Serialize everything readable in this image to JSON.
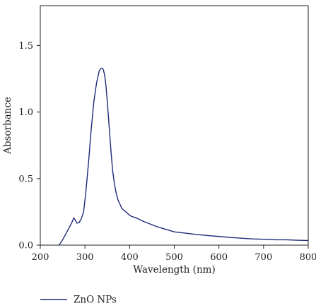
{
  "chart_data": {
    "type": "line",
    "title": "",
    "xlabel": "Wavelength (nm)",
    "ylabel": "Absorbance",
    "xlim": [
      200,
      800
    ],
    "ylim": [
      0.0,
      1.8
    ],
    "x_ticks": [
      200,
      300,
      400,
      500,
      600,
      700,
      800
    ],
    "x_tick_labels": [
      "200",
      "300",
      "400",
      "500",
      "600",
      "700",
      "800"
    ],
    "y_ticks": [
      0.0,
      0.5,
      1.0,
      1.5
    ],
    "y_tick_labels": [
      "0.0",
      "0.5",
      "1.0",
      "1.5"
    ],
    "grid": false,
    "legend_position": "bottom-left",
    "series": [
      {
        "name": "ZnO NPs",
        "color": "#1f2a7a",
        "x": [
          242,
          250,
          258,
          266,
          272,
          275,
          278,
          282,
          287,
          292,
          297,
          302,
          308,
          314,
          320,
          326,
          332,
          336,
          339,
          341,
          344,
          347,
          350,
          354,
          358,
          362,
          366,
          370,
          374,
          378,
          382,
          386,
          390,
          395,
          400,
          405,
          410,
          418,
          430,
          445,
          460,
          480,
          500,
          525,
          550,
          575,
          600,
          625,
          650,
          675,
          700,
          725,
          750,
          775,
          800
        ],
        "y": [
          0.0,
          0.04,
          0.09,
          0.14,
          0.18,
          0.205,
          0.19,
          0.165,
          0.17,
          0.2,
          0.25,
          0.4,
          0.62,
          0.87,
          1.08,
          1.22,
          1.31,
          1.33,
          1.33,
          1.32,
          1.28,
          1.2,
          1.08,
          0.9,
          0.72,
          0.56,
          0.46,
          0.39,
          0.34,
          0.31,
          0.28,
          0.265,
          0.255,
          0.24,
          0.225,
          0.215,
          0.21,
          0.2,
          0.18,
          0.16,
          0.14,
          0.12,
          0.1,
          0.09,
          0.08,
          0.072,
          0.065,
          0.058,
          0.052,
          0.047,
          0.044,
          0.04,
          0.04,
          0.037,
          0.035
        ]
      }
    ]
  }
}
